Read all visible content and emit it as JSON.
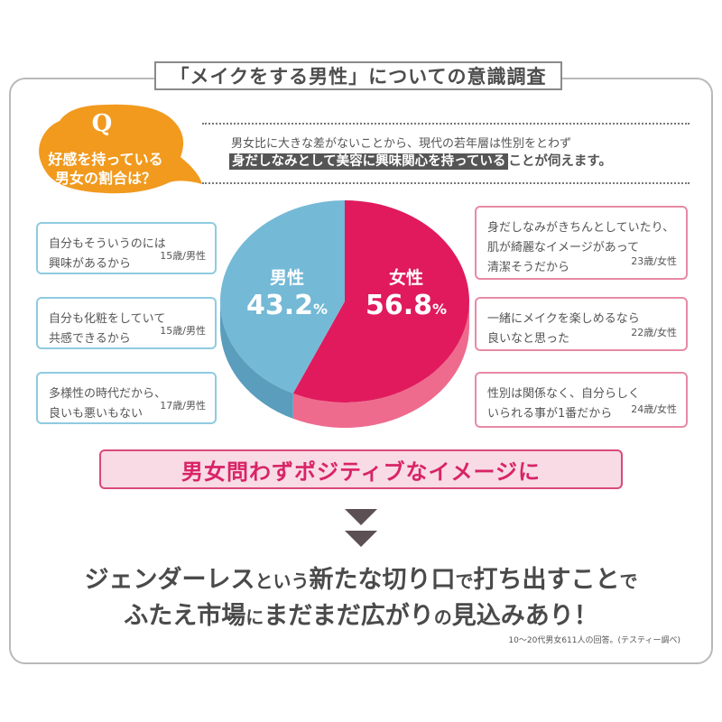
{
  "title": "「メイクをする男性」についての意識調査",
  "question": {
    "letter": "Q",
    "lines": [
      "好感を持っている",
      "男女の割合は？"
    ]
  },
  "intro": {
    "line1": "男女比に大きな差がないことから、現代の若年層は性別をとわず",
    "line2_highlight": "身だしなみとして美容に興味関心を持っている",
    "line2_rest": "ことが伺えます。"
  },
  "chart_data": {
    "type": "pie",
    "slices": [
      {
        "name": "男性",
        "value": 43.2,
        "label": "43.2",
        "unit": "%",
        "color": "#74b9d6",
        "side_color": "#5a9dbd"
      },
      {
        "name": "女性",
        "value": 56.8,
        "label": "56.8",
        "unit": "%",
        "color": "#e01a5d",
        "side_color": "#ee6b8e"
      }
    ]
  },
  "male_comments": [
    {
      "text": "自分もそういうのには\n興味があるから",
      "who": "15歳/男性"
    },
    {
      "text": "自分も化粧をしていて\n共感できるから",
      "who": "15歳/男性"
    },
    {
      "text": "多様性の時代だから、\n良いも悪いもない",
      "who": "17歳/男性"
    }
  ],
  "female_comments": [
    {
      "text": "身だしなみがきちんとしていたり、\n肌が綺麗なイメージがあって\n清潔そうだから",
      "who": "23歳/女性"
    },
    {
      "text": "一緒にメイクを楽しめるなら\n良いなと思った",
      "who": "22歳/女性"
    },
    {
      "text": "性別は関係なく、自分らしく\nいられる事が1番だから",
      "who": "24歳/女性"
    }
  ],
  "banner": "男女問わずポジティブなイメージに",
  "conclusion": {
    "line1": [
      {
        "t": "ジェンダーレス",
        "s": "big"
      },
      {
        "t": "という",
        "s": "sm"
      },
      {
        "t": "新たな切り口",
        "s": "big"
      },
      {
        "t": "で",
        "s": "sm"
      },
      {
        "t": "打ち出すこと",
        "s": "big"
      },
      {
        "t": "で",
        "s": "sm"
      }
    ],
    "line2": [
      {
        "t": "ふたえ市場",
        "s": "big"
      },
      {
        "t": "に",
        "s": "sm"
      },
      {
        "t": "まだまだ広がり",
        "s": "big"
      },
      {
        "t": "の",
        "s": "sm"
      },
      {
        "t": "見込みあり！",
        "s": "big"
      }
    ]
  },
  "note": "10～20代男女611人の回答。(テスティー調べ)",
  "colors": {
    "orange": "#f19a1e",
    "pink": "#d82466",
    "blue": "#74b9d6",
    "arrow": "#5c5055"
  }
}
